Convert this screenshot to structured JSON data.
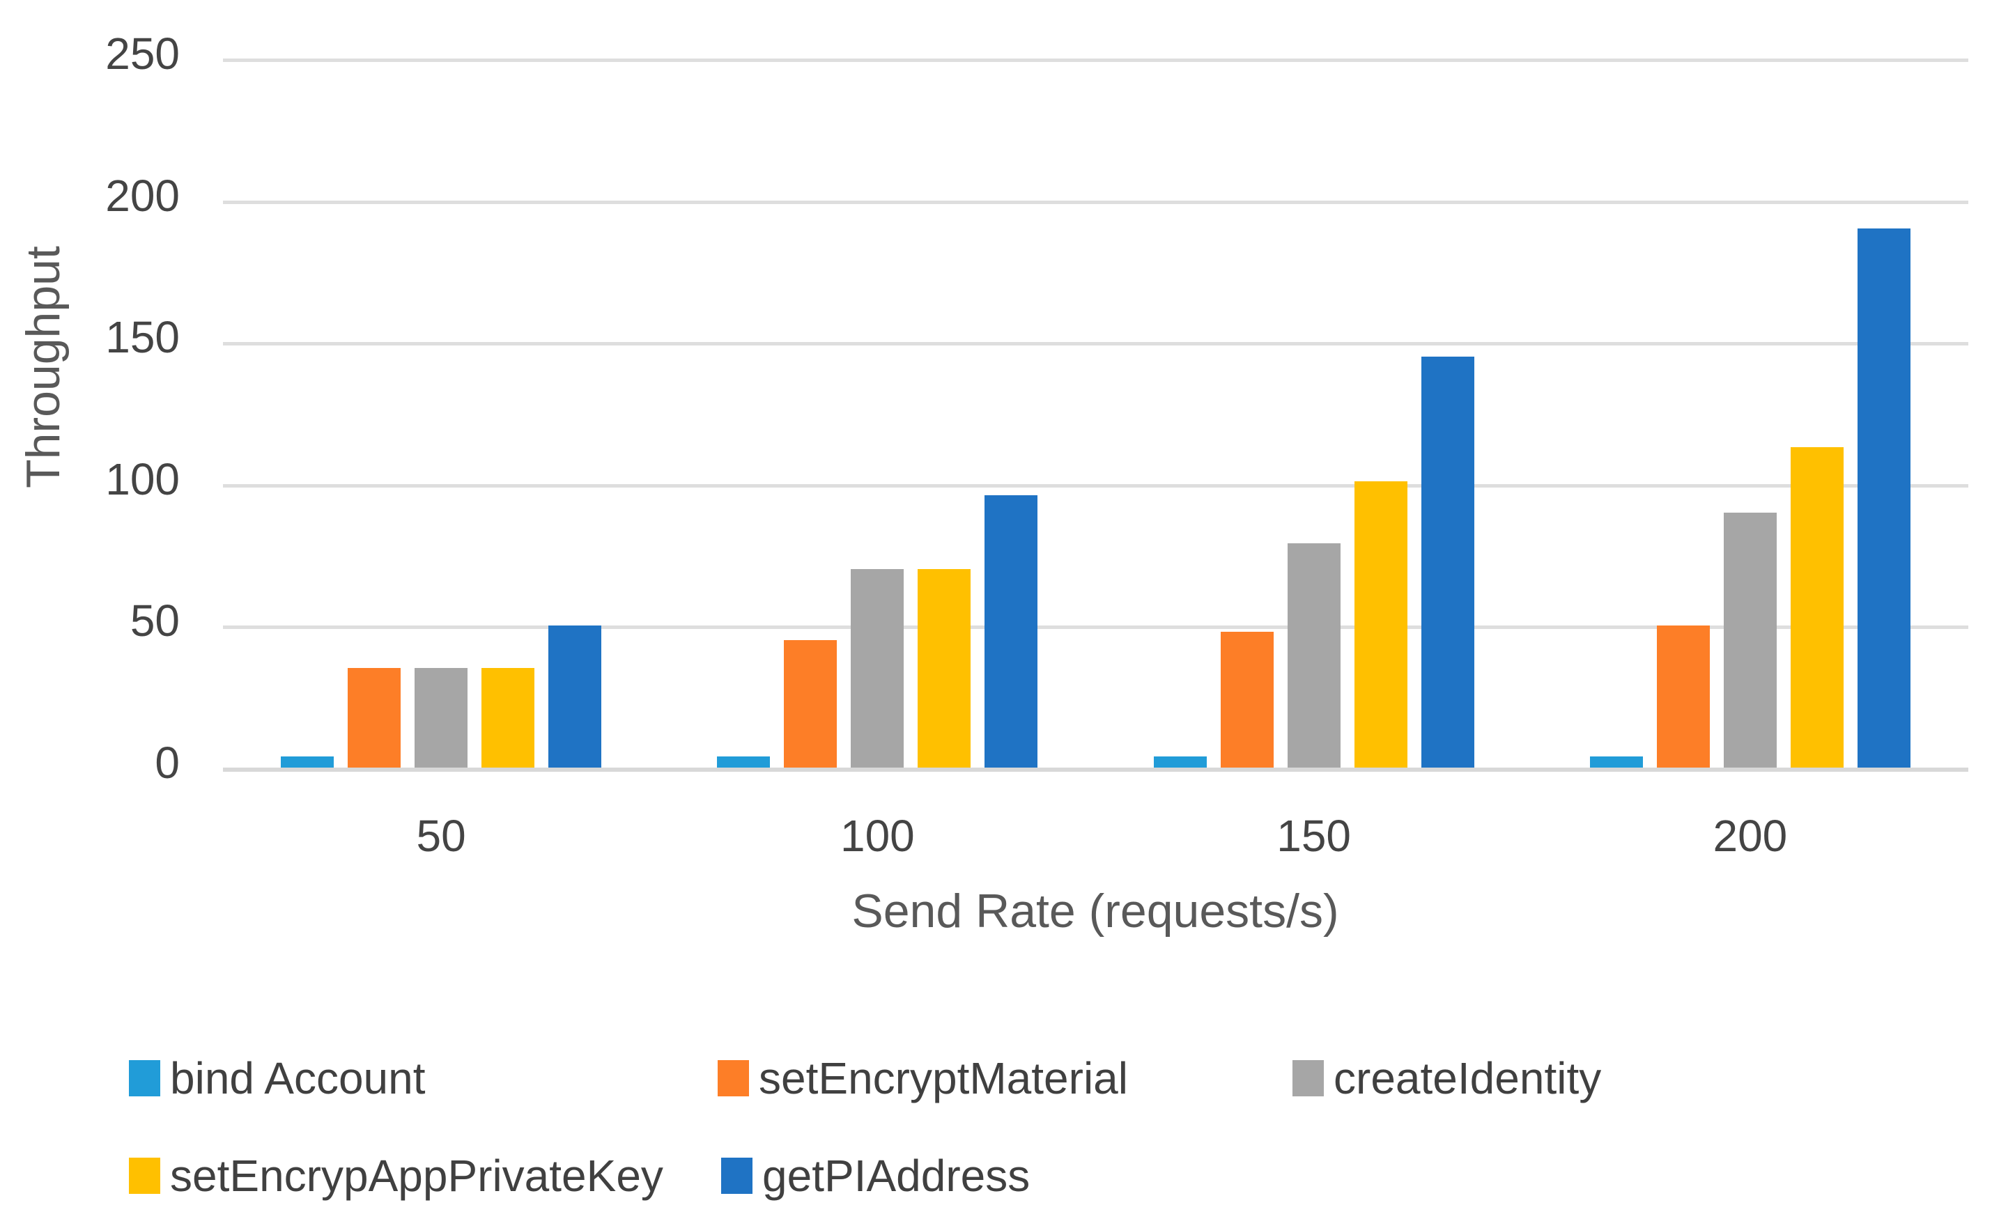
{
  "chart_data": {
    "type": "bar",
    "xlabel": "Send Rate (requests/s)",
    "ylabel": "Throughput",
    "categories": [
      "50",
      "100",
      "150",
      "200"
    ],
    "series": [
      {
        "name": "bind Account",
        "color": "#219CD8",
        "values": [
          4,
          4,
          4,
          4
        ]
      },
      {
        "name": "setEncryptMaterial",
        "color": "#FD7E27",
        "values": [
          35,
          45,
          48,
          50
        ]
      },
      {
        "name": "createIdentity",
        "color": "#A6A6A6",
        "values": [
          35,
          70,
          79,
          90
        ]
      },
      {
        "name": "setEncrypAppPrivateKey",
        "color": "#FFC000",
        "values": [
          35,
          70,
          101,
          113
        ]
      },
      {
        "name": "getPIAddress",
        "color": "#1F73C4",
        "values": [
          50,
          96,
          145,
          190
        ]
      }
    ],
    "ylim": [
      0,
      250
    ],
    "yticks": [
      0,
      50,
      100,
      150,
      200,
      250
    ],
    "grid": true,
    "legend_position": "bottom",
    "legend_rows": [
      [
        0,
        1,
        2
      ],
      [
        3,
        4
      ]
    ]
  }
}
